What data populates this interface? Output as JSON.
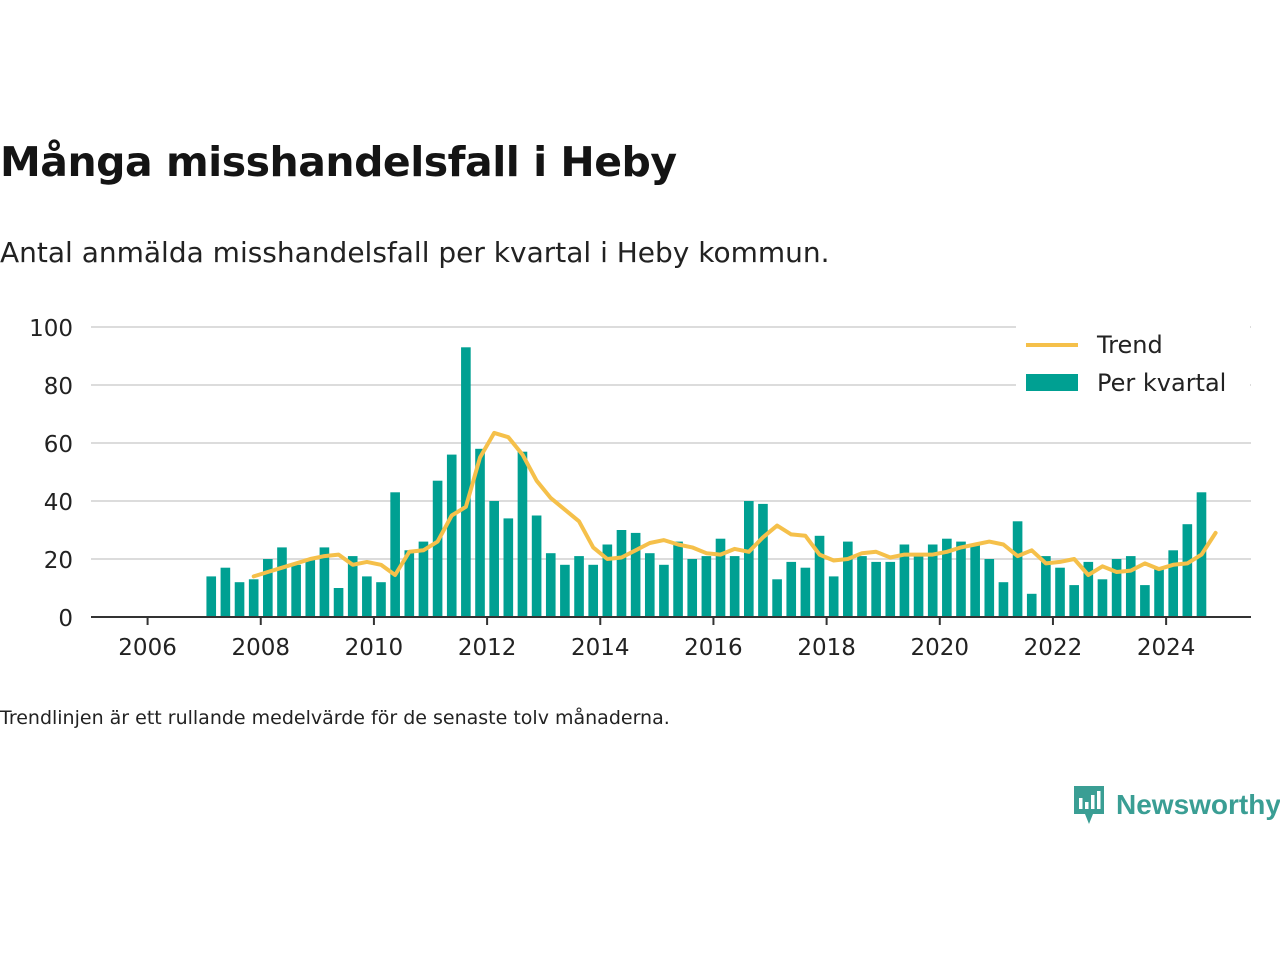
{
  "title": "Många misshandelsfall i Heby",
  "subtitle": "Antal anmälda misshandelsfall per kvartal i Heby kommun.",
  "footnote": "Trendlinjen är ett rullande medelvärde för de senaste tolv månaderna.",
  "logo_text": "Newsworthy",
  "colors": {
    "bar": "#00a092",
    "trend": "#f5c04a",
    "grid": "#dcdcdc",
    "axis": "#333333",
    "logo": "#3a9e94"
  },
  "chart_data": {
    "type": "bar",
    "x_ticks": [
      "2006",
      "2008",
      "2010",
      "2012",
      "2014",
      "2016",
      "2018",
      "2020",
      "2022",
      "2024"
    ],
    "y_ticks": [
      0,
      20,
      40,
      60,
      80,
      100
    ],
    "ylim": [
      0,
      100
    ],
    "xlim": [
      "2005",
      "2025.5"
    ],
    "grid": true,
    "legend_position": "top-right",
    "series": [
      {
        "name": "Per kvartal",
        "type": "bar",
        "start": "2007 Q1",
        "values": [
          14,
          17,
          12,
          13,
          20,
          24,
          18,
          20,
          24,
          10,
          21,
          14,
          12,
          43,
          23,
          26,
          47,
          56,
          93,
          58,
          40,
          34,
          57,
          35,
          22,
          18,
          21,
          18,
          25,
          30,
          29,
          22,
          18,
          26,
          20,
          21,
          27,
          21,
          40,
          39,
          13,
          19,
          17,
          28,
          14,
          26,
          21,
          19,
          19,
          25,
          21,
          25,
          27,
          26,
          25,
          20,
          12,
          33,
          8,
          21,
          17,
          11,
          19,
          13,
          20,
          21,
          11,
          17,
          23,
          32,
          43
        ]
      },
      {
        "name": "Trend",
        "type": "line",
        "start": "2007 Q4",
        "values": [
          14,
          15.5,
          17,
          18.5,
          20,
          21,
          21.5,
          18,
          19,
          18,
          14.5,
          22.5,
          23,
          26,
          35,
          38,
          55,
          63.5,
          62,
          56,
          47,
          41,
          37,
          33,
          24,
          20,
          20.5,
          23,
          25.5,
          26.5,
          25,
          24,
          22,
          21.5,
          23.5,
          22.5,
          27.5,
          31.5,
          28.5,
          28,
          21.5,
          19.5,
          20,
          22,
          22.5,
          20.5,
          21.5,
          21.5,
          21.5,
          22.5,
          24,
          25,
          26,
          25,
          21,
          23,
          18.5,
          19,
          20,
          14.5,
          17.5,
          15.5,
          16,
          18.5,
          16.5,
          18,
          18.5,
          21.5,
          29
        ]
      }
    ]
  }
}
